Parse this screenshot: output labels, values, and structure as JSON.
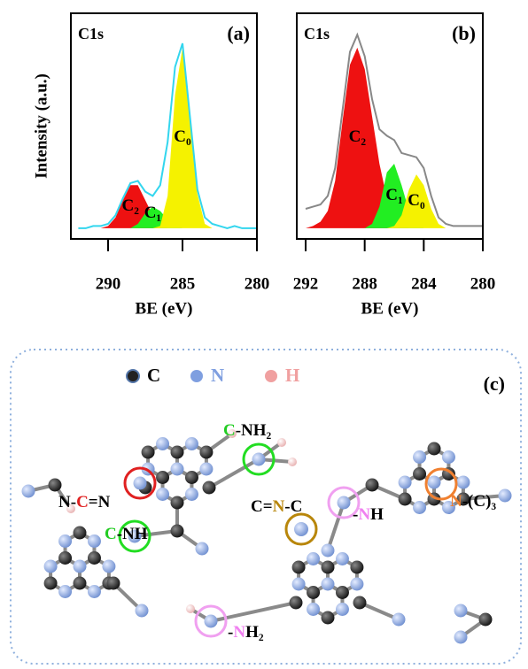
{
  "chart_data": [
    {
      "type": "area",
      "title": "C1s",
      "label": "(a)",
      "ylabel": "Intensity (a.u.)",
      "xlabel": "BE (eV)",
      "xlim": [
        292.5,
        280
      ],
      "xticks": [
        290,
        285,
        280
      ],
      "ylim": [
        -5,
        100
      ],
      "x": [
        292,
        291.5,
        291,
        290.5,
        290,
        289.5,
        289,
        288.5,
        288,
        287.5,
        287,
        286.5,
        286,
        285.5,
        285,
        284.5,
        284,
        283.5,
        283,
        282.5,
        282,
        281.5,
        281,
        280.5,
        280
      ],
      "series": [
        {
          "name": "C₂",
          "color": "#ee1111",
          "fill": true,
          "values": [
            0,
            0,
            0,
            0,
            1,
            5,
            13,
            20,
            20,
            13,
            6,
            2,
            0,
            0,
            0,
            0,
            0,
            0,
            0,
            0,
            0,
            0,
            0,
            0,
            0
          ]
        },
        {
          "name": "C₁",
          "color": "#22ee22",
          "fill": true,
          "values": [
            0,
            0,
            0,
            0,
            0,
            0,
            0,
            0,
            2,
            7,
            10,
            8,
            4,
            1,
            0,
            0,
            0,
            0,
            0,
            0,
            0,
            0,
            0,
            0,
            0
          ]
        },
        {
          "name": "C₀",
          "color": "#f5f200",
          "fill": true,
          "values": [
            0,
            0,
            0,
            0,
            0,
            0,
            0,
            0,
            0,
            0,
            0,
            1,
            15,
            62,
            84,
            52,
            16,
            2,
            0,
            0,
            0,
            0,
            0,
            0,
            0
          ]
        },
        {
          "color": "#33d6ee",
          "fill": false,
          "values": [
            0,
            0,
            1,
            1,
            2,
            6,
            14,
            21,
            22,
            17,
            15,
            20,
            40,
            75,
            86,
            52,
            18,
            5,
            2,
            1,
            0,
            1,
            0,
            0,
            0
          ]
        }
      ]
    },
    {
      "type": "area",
      "title": "C1s",
      "label": "(b)",
      "xlabel": "BE (eV)",
      "xlim": [
        292.6,
        280
      ],
      "xticks": [
        292,
        288,
        284,
        280
      ],
      "ylim": [
        -5,
        100
      ],
      "x": [
        292,
        291.5,
        291,
        290.5,
        290,
        289.5,
        289,
        288.5,
        288,
        287.5,
        287,
        286.5,
        286,
        285.5,
        285,
        284.5,
        284,
        283.5,
        283,
        282.5,
        282,
        281.5,
        281,
        280.5,
        280
      ],
      "series": [
        {
          "name": "C₂",
          "color": "#ee1111",
          "fill": true,
          "values": [
            0,
            1,
            3,
            8,
            22,
            50,
            76,
            84,
            74,
            52,
            30,
            14,
            6,
            2,
            0,
            0,
            0,
            0,
            0,
            0,
            0,
            0,
            0,
            0,
            0
          ]
        },
        {
          "name": "C₁",
          "color": "#22ee22",
          "fill": true,
          "values": [
            0,
            0,
            0,
            0,
            0,
            0,
            0,
            0,
            0,
            2,
            10,
            26,
            30,
            20,
            8,
            2,
            0,
            0,
            0,
            0,
            0,
            0,
            0,
            0,
            0
          ]
        },
        {
          "name": "C₀",
          "color": "#f5f200",
          "fill": true,
          "values": [
            0,
            0,
            0,
            0,
            0,
            0,
            0,
            0,
            0,
            0,
            0,
            0,
            1,
            6,
            18,
            25,
            20,
            9,
            2,
            0,
            0,
            0,
            0,
            0,
            0
          ]
        },
        {
          "color": "#888888",
          "fill": false,
          "values": [
            9,
            10,
            11,
            15,
            28,
            55,
            82,
            90,
            80,
            60,
            46,
            43,
            41,
            35,
            34,
            33,
            28,
            15,
            5,
            2,
            1,
            1,
            1,
            1,
            1
          ]
        }
      ]
    }
  ],
  "diagram": {
    "label": "(c)",
    "legend": [
      {
        "label": "C",
        "color": "#222222"
      },
      {
        "label": "N",
        "color": "#7f9fe0"
      },
      {
        "label": "H",
        "color": "#f0a0a0"
      }
    ],
    "annotations": [
      {
        "parts": [
          {
            "text": "C",
            "color": "#22cc22"
          },
          {
            "text": "-NH₂",
            "color": "#000000"
          }
        ]
      },
      {
        "parts": [
          {
            "text": "N-",
            "color": "#000000"
          },
          {
            "text": "C",
            "color": "#e02020"
          },
          {
            "text": "=N",
            "color": "#000000"
          }
        ]
      },
      {
        "parts": [
          {
            "text": "C",
            "color": "#22cc22"
          },
          {
            "text": "-NH",
            "color": "#000000"
          }
        ]
      },
      {
        "parts": [
          {
            "text": "C=",
            "color": "#000000"
          },
          {
            "text": "N",
            "color": "#b8860b"
          },
          {
            "text": "-C",
            "color": "#000000"
          }
        ]
      },
      {
        "parts": [
          {
            "text": "-",
            "color": "#000000"
          },
          {
            "text": "N",
            "color": "#f080f0"
          },
          {
            "text": "H",
            "color": "#000000"
          }
        ]
      },
      {
        "parts": [
          {
            "text": "N",
            "color": "#f08030"
          },
          {
            "text": "-(C)₃",
            "color": "#000000"
          }
        ]
      },
      {
        "parts": [
          {
            "text": "-",
            "color": "#000000"
          },
          {
            "text": "N",
            "color": "#f080f0"
          },
          {
            "text": "H₂",
            "color": "#000000"
          }
        ]
      }
    ]
  }
}
